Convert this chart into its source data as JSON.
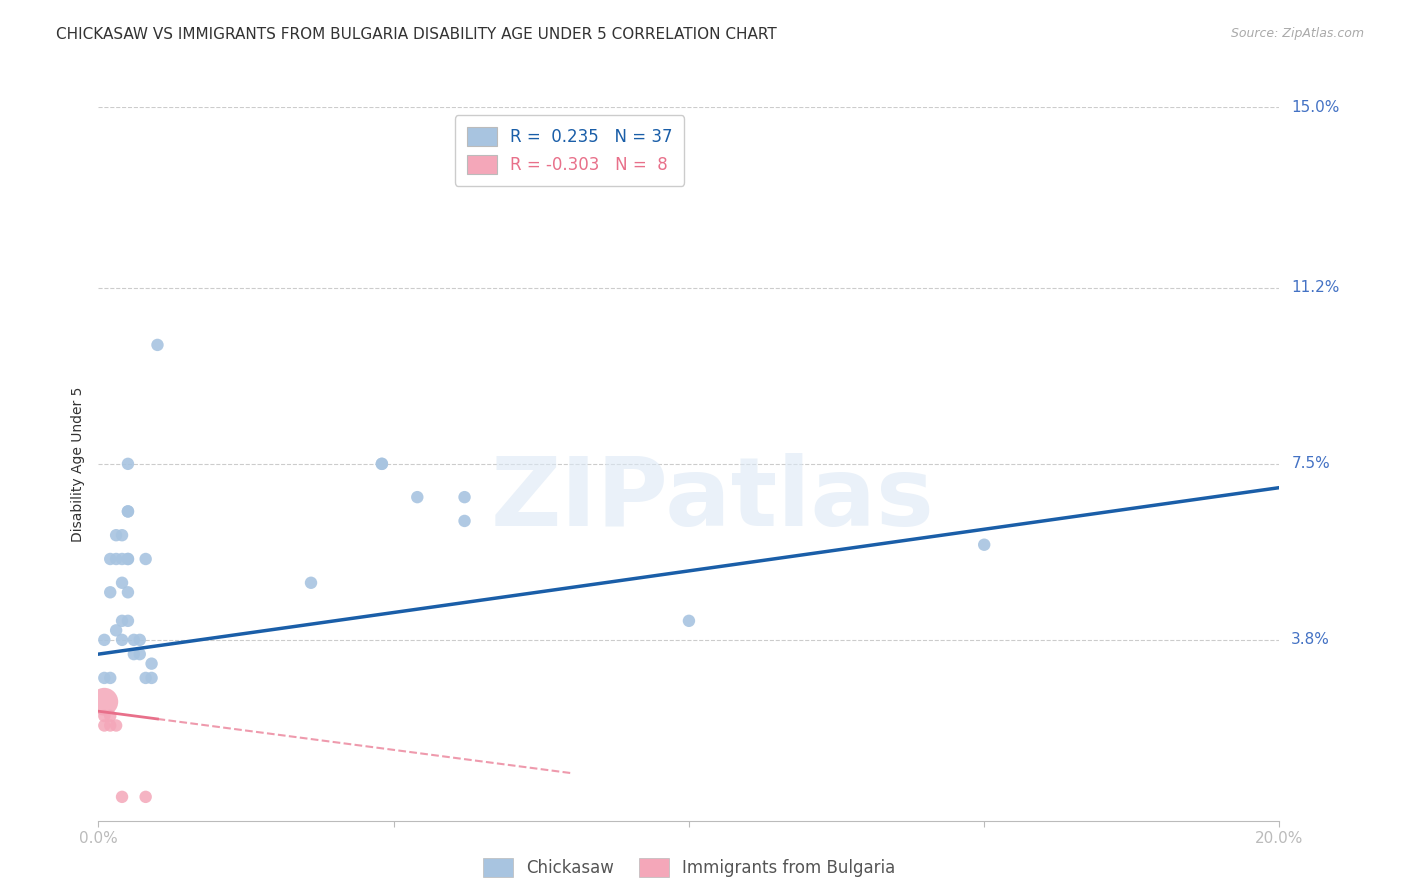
{
  "title": "CHICKASAW VS IMMIGRANTS FROM BULGARIA DISABILITY AGE UNDER 5 CORRELATION CHART",
  "source": "Source: ZipAtlas.com",
  "ylabel": "Disability Age Under 5",
  "xlim": [
    0.0,
    0.2
  ],
  "ylim": [
    0.0,
    0.15
  ],
  "xticks": [
    0.0,
    0.05,
    0.1,
    0.15,
    0.2
  ],
  "xtick_labels": [
    "0.0%",
    "",
    "",
    "",
    "20.0%"
  ],
  "ytick_labels_right": [
    "15.0%",
    "11.2%",
    "7.5%",
    "3.8%"
  ],
  "ytick_positions_right": [
    0.15,
    0.112,
    0.075,
    0.038
  ],
  "R_chickasaw": 0.235,
  "N_chickasaw": 37,
  "R_bulgaria": -0.303,
  "N_bulgaria": 8,
  "chickasaw_color": "#a8c4e0",
  "bulgaria_color": "#f4a7b9",
  "line_chickasaw_color": "#1a5ea8",
  "line_bulgaria_color": "#e8708a",
  "legend_label_1": "Chickasaw",
  "legend_label_2": "Immigrants from Bulgaria",
  "watermark": "ZIPatlas",
  "chickasaw_points": [
    [
      0.001,
      0.038
    ],
    [
      0.001,
      0.03
    ],
    [
      0.002,
      0.055
    ],
    [
      0.002,
      0.048
    ],
    [
      0.002,
      0.03
    ],
    [
      0.003,
      0.06
    ],
    [
      0.003,
      0.055
    ],
    [
      0.003,
      0.04
    ],
    [
      0.004,
      0.06
    ],
    [
      0.004,
      0.055
    ],
    [
      0.004,
      0.05
    ],
    [
      0.004,
      0.042
    ],
    [
      0.004,
      0.038
    ],
    [
      0.005,
      0.075
    ],
    [
      0.005,
      0.065
    ],
    [
      0.005,
      0.065
    ],
    [
      0.005,
      0.055
    ],
    [
      0.005,
      0.055
    ],
    [
      0.005,
      0.048
    ],
    [
      0.005,
      0.042
    ],
    [
      0.006,
      0.038
    ],
    [
      0.006,
      0.035
    ],
    [
      0.007,
      0.038
    ],
    [
      0.007,
      0.035
    ],
    [
      0.008,
      0.055
    ],
    [
      0.008,
      0.03
    ],
    [
      0.009,
      0.033
    ],
    [
      0.009,
      0.03
    ],
    [
      0.01,
      0.1
    ],
    [
      0.036,
      0.05
    ],
    [
      0.048,
      0.075
    ],
    [
      0.048,
      0.075
    ],
    [
      0.054,
      0.068
    ],
    [
      0.062,
      0.068
    ],
    [
      0.062,
      0.063
    ],
    [
      0.1,
      0.042
    ],
    [
      0.15,
      0.058
    ]
  ],
  "bulgaria_points": [
    [
      0.001,
      0.025
    ],
    [
      0.001,
      0.022
    ],
    [
      0.001,
      0.02
    ],
    [
      0.002,
      0.022
    ],
    [
      0.002,
      0.02
    ],
    [
      0.003,
      0.02
    ],
    [
      0.004,
      0.005
    ],
    [
      0.008,
      0.005
    ]
  ],
  "bulgaria_sizes": [
    400,
    80,
    80,
    80,
    80,
    80,
    80,
    80
  ],
  "bg_color": "#ffffff",
  "grid_color": "#cccccc",
  "title_fontsize": 11,
  "axis_label_fontsize": 10,
  "tick_fontsize": 11,
  "legend_fontsize": 12
}
